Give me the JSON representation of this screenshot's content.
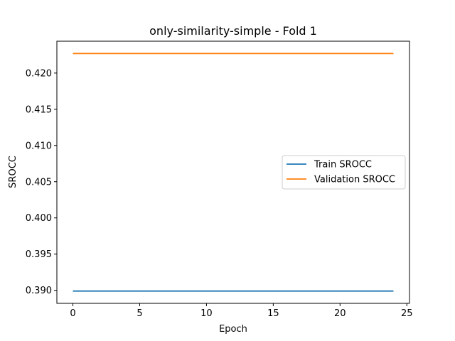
{
  "chart_data": {
    "type": "line",
    "title": "only-similarity-simple - Fold 1",
    "xlabel": "Epoch",
    "ylabel": "SROCC",
    "xlim": [
      -1.2,
      25.2
    ],
    "ylim": [
      0.3882,
      0.4244
    ],
    "xticks": [
      0,
      5,
      10,
      15,
      20,
      25
    ],
    "yticks": [
      0.39,
      0.395,
      0.4,
      0.405,
      0.41,
      0.415,
      0.42
    ],
    "xtick_labels": [
      "0",
      "5",
      "10",
      "15",
      "20",
      "25"
    ],
    "ytick_labels": [
      "0.390",
      "0.395",
      "0.400",
      "0.405",
      "0.410",
      "0.415",
      "0.420"
    ],
    "x": [
      0,
      1,
      2,
      3,
      4,
      5,
      6,
      7,
      8,
      9,
      10,
      11,
      12,
      13,
      14,
      15,
      16,
      17,
      18,
      19,
      20,
      21,
      22,
      23,
      24
    ],
    "series": [
      {
        "name": "Train SROCC",
        "color": "#1f77b4",
        "values": [
          0.3899,
          0.3899,
          0.3899,
          0.3899,
          0.3899,
          0.3899,
          0.3899,
          0.3899,
          0.3899,
          0.3899,
          0.3899,
          0.3899,
          0.3899,
          0.3899,
          0.3899,
          0.3899,
          0.3899,
          0.3899,
          0.3899,
          0.3899,
          0.3899,
          0.3899,
          0.3899,
          0.3899,
          0.3899
        ]
      },
      {
        "name": "Validation SROCC",
        "color": "#ff7f0e",
        "values": [
          0.4227,
          0.4227,
          0.4227,
          0.4227,
          0.4227,
          0.4227,
          0.4227,
          0.4227,
          0.4227,
          0.4227,
          0.4227,
          0.4227,
          0.4227,
          0.4227,
          0.4227,
          0.4227,
          0.4227,
          0.4227,
          0.4227,
          0.4227,
          0.4227,
          0.4227,
          0.4227,
          0.4227,
          0.4227
        ]
      }
    ],
    "grid": false,
    "legend_position": "center-right"
  }
}
